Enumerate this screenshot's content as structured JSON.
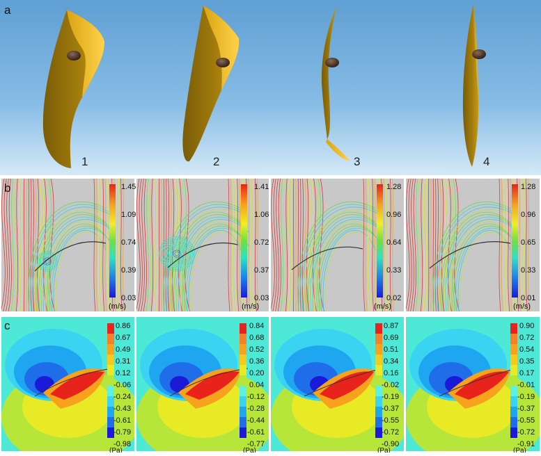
{
  "figure": {
    "row_a": {
      "label": "a",
      "panels": [
        {
          "number": "1"
        },
        {
          "number": "2"
        },
        {
          "number": "3"
        },
        {
          "number": "4"
        }
      ]
    },
    "row_b": {
      "label": "b",
      "unit": "(m/s)",
      "panels": [
        {
          "ticks": [
            "1.45",
            "1.09",
            "0.74",
            "0.39",
            "0.03"
          ]
        },
        {
          "ticks": [
            "1.41",
            "1.06",
            "0.72",
            "0.37",
            "0.03"
          ]
        },
        {
          "ticks": [
            "1.28",
            "0.96",
            "0.64",
            "0.33",
            "0.02"
          ]
        },
        {
          "ticks": [
            "1.28",
            "0.96",
            "0.65",
            "0.33",
            "0.01"
          ]
        }
      ]
    },
    "row_c": {
      "label": "c",
      "unit": "(Pa)",
      "panels": [
        {
          "ticks": [
            "0.86",
            "0.67",
            "0.49",
            "0.31",
            "0.12",
            "-0.06",
            "-0.24",
            "-0.43",
            "-0.61",
            "-0.79",
            "-0.98"
          ]
        },
        {
          "ticks": [
            "0.84",
            "0.68",
            "0.52",
            "0.36",
            "0.20",
            "0.04",
            "-0.12",
            "-0.28",
            "-0.44",
            "-0.61",
            "-0.77"
          ]
        },
        {
          "ticks": [
            "0.87",
            "0.69",
            "0.51",
            "0.34",
            "0.16",
            "-0.02",
            "-0.19",
            "-0.37",
            "-0.55",
            "-0.72",
            "-0.90"
          ]
        },
        {
          "ticks": [
            "0.90",
            "0.72",
            "0.54",
            "0.35",
            "0.17",
            "-0.01",
            "-0.19",
            "-0.37",
            "-0.55",
            "-0.72",
            "-0.91"
          ]
        }
      ]
    },
    "colors": {
      "sky_top": "#5f9fd3",
      "sky_bottom": "#cfe6f6",
      "wing_dark": "#8a6a08",
      "wing_light": "#f5c51a",
      "flow_bg": "#c8c8c8",
      "pressure_cyan": "#5ef0e0"
    }
  }
}
